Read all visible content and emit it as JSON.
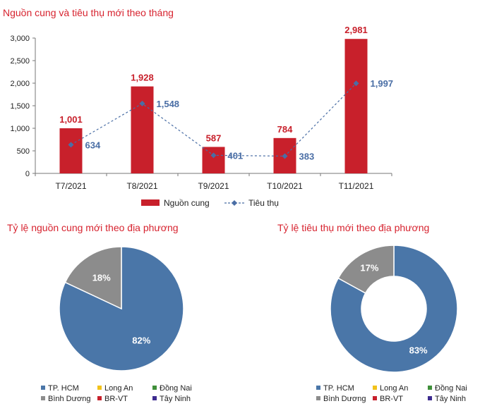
{
  "chart_data": [
    {
      "type": "bar",
      "title": "Nguồn cung và tiêu thụ mới theo tháng",
      "categories": [
        "T7/2021",
        "T8/2021",
        "T9/2021",
        "T10/2021",
        "T11/2021"
      ],
      "series": [
        {
          "name": "Nguồn cung",
          "type": "bar",
          "values": [
            1001,
            1928,
            587,
            784,
            2981
          ],
          "labels": [
            "1,001",
            "1,928",
            "587",
            "784",
            "2,981"
          ],
          "color": "#c8202b"
        },
        {
          "name": "Tiêu thụ",
          "type": "line",
          "values": [
            634,
            1548,
            401,
            383,
            1997
          ],
          "labels": [
            "634",
            "1,548",
            "401",
            "383",
            "1,997"
          ],
          "color": "#4a6ea5"
        }
      ],
      "ylim": [
        0,
        3000
      ],
      "yticks": [
        "0",
        "500",
        "1,000",
        "1,500",
        "2,000",
        "2,500",
        "3,000"
      ],
      "legend": "bottom"
    },
    {
      "type": "pie",
      "title": "Tỷ lệ nguồn cung mới theo địa phương",
      "slices": [
        {
          "name": "TP. HCM",
          "value": 82,
          "label": "82%",
          "color": "#4a76a8"
        },
        {
          "name": "Long An",
          "value": 0,
          "color": "#f2c21a"
        },
        {
          "name": "Đồng Nai",
          "value": 0,
          "color": "#3f8f3a"
        },
        {
          "name": "Bình Dương",
          "value": 18,
          "label": "18%",
          "color": "#8c8c8c"
        },
        {
          "name": "BR-VT",
          "value": 0,
          "color": "#c8202b"
        },
        {
          "name": "Tây Ninh",
          "value": 0,
          "color": "#3d2b8f"
        }
      ],
      "legend": "bottom"
    },
    {
      "type": "pie",
      "subtype": "donut",
      "title": "Tỷ lệ tiêu thụ mới theo địa phương",
      "slices": [
        {
          "name": "TP. HCM",
          "value": 83,
          "label": "83%",
          "color": "#4a76a8"
        },
        {
          "name": "Long An",
          "value": 0,
          "color": "#f2c21a"
        },
        {
          "name": "Đồng Nai",
          "value": 0,
          "color": "#3f8f3a"
        },
        {
          "name": "Bình Dương",
          "value": 17,
          "label": "17%",
          "color": "#8c8c8c"
        },
        {
          "name": "BR-VT",
          "value": 0,
          "color": "#c8202b"
        },
        {
          "name": "Tây Ninh",
          "value": 0,
          "color": "#3d2b8f"
        }
      ],
      "legend": "bottom"
    }
  ]
}
